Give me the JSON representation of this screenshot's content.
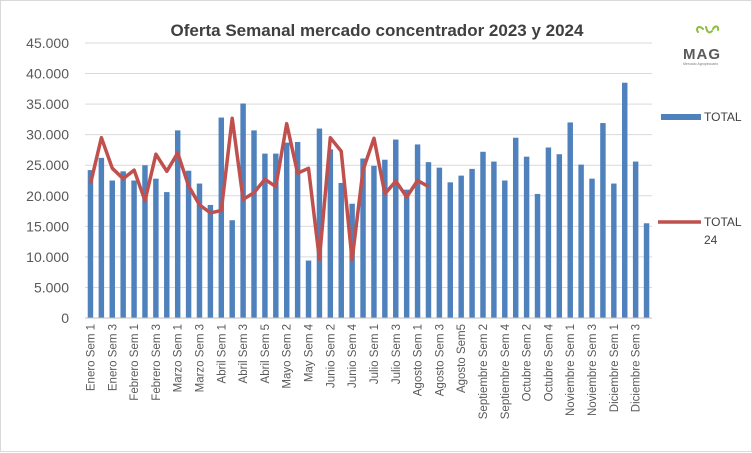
{
  "chart_data": {
    "type": "bar",
    "title": "Oferta Semanal mercado concentrador  2023 y 2024",
    "ylim": [
      0,
      45000
    ],
    "yticks": [
      "0",
      "5.000",
      "10.000",
      "15.000",
      "20.000",
      "25.000",
      "30.000",
      "35.000",
      "40.000",
      "45.000"
    ],
    "ytick_values": [
      0,
      5000,
      10000,
      15000,
      20000,
      25000,
      30000,
      35000,
      40000,
      45000
    ],
    "grid": "horizontal",
    "legend_position": "right",
    "x_tick_labels": [
      "Enero Sem 1",
      "Enero Sem 3",
      "Febrero Sem 1",
      "Febrero Sem 3",
      "Marzo Sem 1",
      "Marzo Sem 3",
      "Abril Sem 1",
      "Abril Sem 3",
      "Abril Sem 5",
      "Mayo Sem 2",
      "May Sem 4",
      "Junio Sem 2",
      "Junio Sem 4",
      "Julio Sem 1",
      "Julio Sem 3",
      "Agosto Sem 1",
      "Agosto Sem 3",
      "Agosto Sem5",
      "Septiembre Sem 2",
      "Septiembre Sem 4",
      "Octubre Sem 2",
      "Octubre Sem 4",
      "Noviembre Sem 1",
      "Noviembre Sem 3",
      "Diciembre Sem 1",
      "Diciembre Sem 3"
    ],
    "series": [
      {
        "name": "TOTAL",
        "kind": "bar",
        "color": "#4f81bd",
        "values": [
          24200,
          26200,
          22500,
          24000,
          22500,
          25000,
          22800,
          20600,
          30700,
          24100,
          22000,
          18500,
          32800,
          16000,
          35100,
          30700,
          26900,
          26900,
          28700,
          28800,
          9400,
          31000,
          27600,
          22100,
          18700,
          26100,
          24900,
          25900,
          29200,
          21000,
          28400,
          25500,
          24600,
          22200,
          23300,
          24400,
          27200,
          25600,
          22500,
          29500,
          26400,
          20300,
          27900,
          26800,
          32000,
          25100,
          22800,
          31900,
          22000,
          38500,
          25600,
          15500
        ]
      },
      {
        "name": "TOTAL\n24",
        "kind": "line",
        "color": "#c0504d",
        "values": [
          22000,
          29500,
          24500,
          22800,
          24200,
          19200,
          26800,
          24000,
          27000,
          21600,
          18500,
          17200,
          17600,
          32700,
          19400,
          20500,
          22700,
          21500,
          31800,
          23700,
          24500,
          9600,
          29500,
          27300,
          9500,
          24200,
          29400,
          20300,
          22400,
          19800,
          22500,
          21500
        ]
      }
    ]
  },
  "legend": {
    "bar_label": "TOTAL",
    "line_label_1": "TOTAL",
    "line_label_2": "24"
  },
  "logo": {
    "text": "MAG",
    "subtext": "Mercado Agropecuario"
  }
}
